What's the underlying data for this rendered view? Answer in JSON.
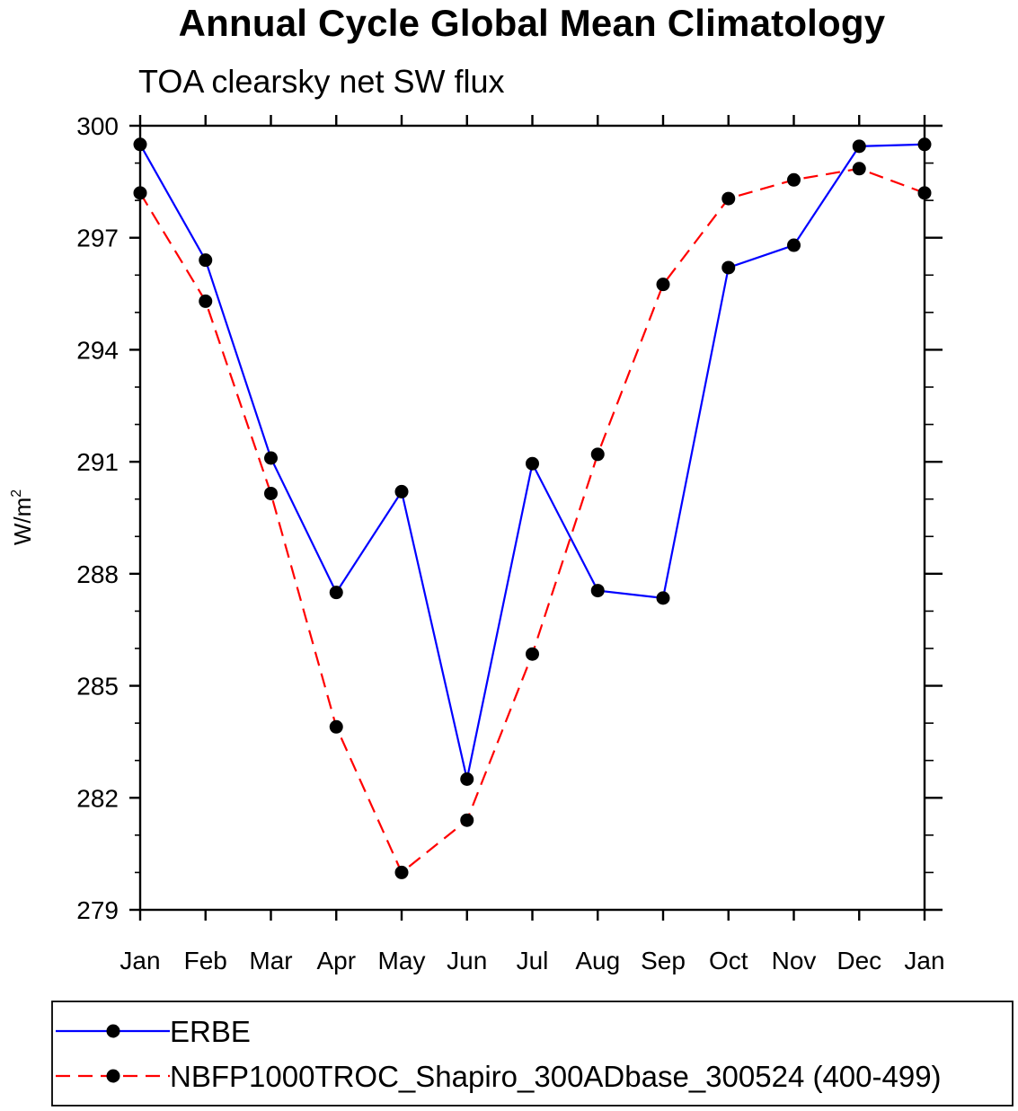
{
  "chart_data": {
    "type": "line",
    "title": "Annual Cycle Global Mean Climatology",
    "subtitle": "TOA clearsky net SW flux",
    "ylabel": "W/m",
    "ylabel_superscript": "2",
    "xlabel": "",
    "categories": [
      "Jan",
      "Feb",
      "Mar",
      "Apr",
      "May",
      "Jun",
      "Jul",
      "Aug",
      "Sep",
      "Oct",
      "Nov",
      "Dec",
      "Jan"
    ],
    "ylim": [
      279,
      300
    ],
    "yticks": [
      279,
      282,
      285,
      288,
      291,
      294,
      297,
      300
    ],
    "series": [
      {
        "name": "ERBE",
        "color": "#0000ff",
        "dash": "solid",
        "marker": "filled-circle",
        "values": [
          299.5,
          296.4,
          291.1,
          287.5,
          290.2,
          282.5,
          290.95,
          287.55,
          287.35,
          296.2,
          296.8,
          299.45,
          299.5
        ]
      },
      {
        "name": "NBFP1000TROC_Shapiro_300ADbase_300524 (400-499)",
        "color": "#ff0000",
        "dash": "dashed",
        "marker": "filled-circle",
        "values": [
          298.2,
          295.3,
          290.15,
          283.9,
          280.0,
          281.4,
          285.85,
          291.2,
          295.75,
          298.05,
          298.55,
          298.85,
          298.2
        ]
      }
    ],
    "legend_position": "bottom",
    "grid": false
  }
}
